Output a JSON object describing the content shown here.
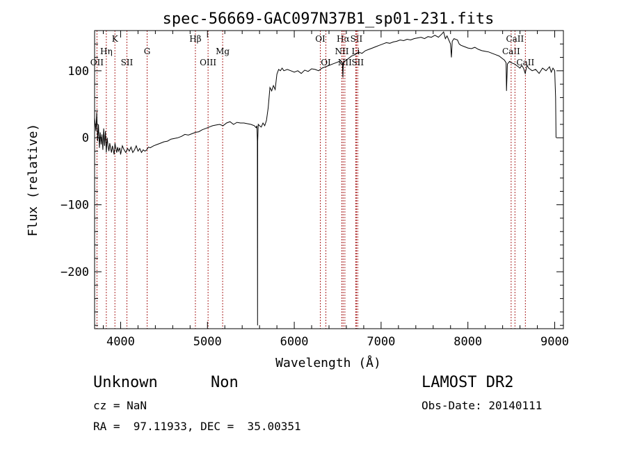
{
  "chart_data": {
    "type": "line",
    "title": "spec-56669-GAC097N37B1_sp01-231.fits",
    "xlabel": "Wavelength (Å)",
    "ylabel": "Flux (relative)",
    "xlim": [
      3700,
      9100
    ],
    "ylim": [
      -285,
      160
    ],
    "grid": false,
    "xticks": [
      4000,
      5000,
      6000,
      7000,
      8000,
      9000
    ],
    "yticks": [
      100,
      0,
      -100,
      -200
    ],
    "ytick_labels": [
      "100",
      "0",
      "−100",
      "−200"
    ],
    "series": [
      {
        "points": [
          [
            3700,
            30
          ],
          [
            3715,
            10
          ],
          [
            3725,
            38
          ],
          [
            3735,
            -5
          ],
          [
            3745,
            20
          ],
          [
            3755,
            -15
          ],
          [
            3765,
            8
          ],
          [
            3775,
            -10
          ],
          [
            3785,
            5
          ],
          [
            3795,
            -18
          ],
          [
            3805,
            14
          ],
          [
            3815,
            -12
          ],
          [
            3825,
            10
          ],
          [
            3835,
            -22
          ],
          [
            3845,
            0
          ],
          [
            3855,
            -12
          ],
          [
            3865,
            -20
          ],
          [
            3875,
            -8
          ],
          [
            3885,
            -16
          ],
          [
            3895,
            -22
          ],
          [
            3905,
            -12
          ],
          [
            3915,
            -18
          ],
          [
            3925,
            -25
          ],
          [
            3935,
            -8
          ],
          [
            3945,
            -16
          ],
          [
            3955,
            -22
          ],
          [
            3965,
            -14
          ],
          [
            3975,
            -20
          ],
          [
            3990,
            -15
          ],
          [
            4000,
            -25
          ],
          [
            4020,
            -12
          ],
          [
            4040,
            -18
          ],
          [
            4060,
            -22
          ],
          [
            4080,
            -16
          ],
          [
            4100,
            -20
          ],
          [
            4120,
            -14
          ],
          [
            4140,
            -22
          ],
          [
            4160,
            -18
          ],
          [
            4180,
            -12
          ],
          [
            4200,
            -20
          ],
          [
            4220,
            -16
          ],
          [
            4240,
            -22
          ],
          [
            4260,
            -18
          ],
          [
            4280,
            -20
          ],
          [
            4300,
            -18
          ],
          [
            4320,
            -14
          ],
          [
            4340,
            -15
          ],
          [
            4380,
            -12
          ],
          [
            4420,
            -10
          ],
          [
            4460,
            -8
          ],
          [
            4500,
            -6
          ],
          [
            4540,
            -5
          ],
          [
            4580,
            -2
          ],
          [
            4620,
            -1
          ],
          [
            4660,
            0
          ],
          [
            4700,
            2
          ],
          [
            4740,
            5
          ],
          [
            4780,
            4
          ],
          [
            4820,
            6
          ],
          [
            4860,
            8
          ],
          [
            4900,
            9
          ],
          [
            4940,
            12
          ],
          [
            4980,
            14
          ],
          [
            5020,
            16
          ],
          [
            5060,
            18
          ],
          [
            5100,
            19
          ],
          [
            5140,
            20
          ],
          [
            5180,
            18
          ],
          [
            5220,
            22
          ],
          [
            5260,
            24
          ],
          [
            5300,
            20
          ],
          [
            5340,
            23
          ],
          [
            5380,
            22
          ],
          [
            5420,
            22
          ],
          [
            5460,
            21
          ],
          [
            5500,
            20
          ],
          [
            5540,
            18
          ],
          [
            5560,
            15
          ],
          [
            5570,
            18
          ],
          [
            5575,
            -5
          ],
          [
            5577,
            -280
          ],
          [
            5579,
            -5
          ],
          [
            5585,
            20
          ],
          [
            5600,
            18
          ],
          [
            5620,
            16
          ],
          [
            5640,
            22
          ],
          [
            5660,
            18
          ],
          [
            5680,
            26
          ],
          [
            5700,
            45
          ],
          [
            5720,
            75
          ],
          [
            5740,
            70
          ],
          [
            5760,
            78
          ],
          [
            5780,
            72
          ],
          [
            5800,
            95
          ],
          [
            5820,
            102
          ],
          [
            5840,
            100
          ],
          [
            5860,
            104
          ],
          [
            5880,
            100
          ],
          [
            5920,
            102
          ],
          [
            5960,
            100
          ],
          [
            6000,
            98
          ],
          [
            6040,
            100
          ],
          [
            6080,
            96
          ],
          [
            6120,
            101
          ],
          [
            6160,
            99
          ],
          [
            6200,
            103
          ],
          [
            6240,
            102
          ],
          [
            6280,
            100
          ],
          [
            6320,
            104
          ],
          [
            6360,
            106
          ],
          [
            6400,
            108
          ],
          [
            6440,
            110
          ],
          [
            6480,
            112
          ],
          [
            6520,
            114
          ],
          [
            6540,
            110
          ],
          [
            6555,
            110
          ],
          [
            6560,
            90
          ],
          [
            6565,
            112
          ],
          [
            6580,
            114
          ],
          [
            6620,
            118
          ],
          [
            6660,
            122
          ],
          [
            6700,
            124
          ],
          [
            6740,
            128
          ],
          [
            6780,
            126
          ],
          [
            6820,
            130
          ],
          [
            6860,
            132
          ],
          [
            6900,
            134
          ],
          [
            6940,
            136
          ],
          [
            6980,
            138
          ],
          [
            7020,
            140
          ],
          [
            7060,
            142
          ],
          [
            7100,
            141
          ],
          [
            7140,
            143
          ],
          [
            7180,
            144
          ],
          [
            7220,
            146
          ],
          [
            7260,
            145
          ],
          [
            7300,
            147
          ],
          [
            7340,
            146
          ],
          [
            7380,
            148
          ],
          [
            7420,
            149
          ],
          [
            7460,
            150
          ],
          [
            7500,
            148
          ],
          [
            7540,
            151
          ],
          [
            7580,
            150
          ],
          [
            7620,
            153
          ],
          [
            7660,
            150
          ],
          [
            7700,
            155
          ],
          [
            7720,
            158
          ],
          [
            7740,
            148
          ],
          [
            7760,
            152
          ],
          [
            7780,
            146
          ],
          [
            7800,
            140
          ],
          [
            7810,
            120
          ],
          [
            7820,
            144
          ],
          [
            7840,
            148
          ],
          [
            7880,
            146
          ],
          [
            7900,
            140
          ],
          [
            7920,
            138
          ],
          [
            7960,
            136
          ],
          [
            8000,
            134
          ],
          [
            8040,
            133
          ],
          [
            8080,
            135
          ],
          [
            8120,
            132
          ],
          [
            8160,
            130
          ],
          [
            8200,
            129
          ],
          [
            8240,
            128
          ],
          [
            8280,
            126
          ],
          [
            8320,
            124
          ],
          [
            8360,
            122
          ],
          [
            8400,
            118
          ],
          [
            8420,
            116
          ],
          [
            8440,
            112
          ],
          [
            8445,
            70
          ],
          [
            8455,
            110
          ],
          [
            8480,
            114
          ],
          [
            8500,
            112
          ],
          [
            8540,
            110
          ],
          [
            8560,
            108
          ],
          [
            8600,
            104
          ],
          [
            8620,
            108
          ],
          [
            8640,
            104
          ],
          [
            8660,
            96
          ],
          [
            8680,
            108
          ],
          [
            8700,
            104
          ],
          [
            8740,
            100
          ],
          [
            8780,
            102
          ],
          [
            8820,
            96
          ],
          [
            8860,
            104
          ],
          [
            8900,
            100
          ],
          [
            8940,
            106
          ],
          [
            8960,
            98
          ],
          [
            8980,
            104
          ],
          [
            9000,
            100
          ],
          [
            9010,
            60
          ],
          [
            9015,
            0
          ]
        ]
      }
    ],
    "lines": [
      {
        "label": "OII",
        "x": 3727,
        "row": 3
      },
      {
        "label": "Hη",
        "x": 3835,
        "row": 2
      },
      {
        "label": "K",
        "x": 3934,
        "row": 1
      },
      {
        "label": "SII",
        "x": 4072,
        "row": 3
      },
      {
        "label": "G",
        "x": 4305,
        "row": 2
      },
      {
        "label": "Hβ",
        "x": 4861,
        "row": 1
      },
      {
        "label": "OIII",
        "x": 5007,
        "row": 3
      },
      {
        "label": "Mg",
        "x": 5175,
        "row": 2
      },
      {
        "label": "OI",
        "x": 6300,
        "row": 1
      },
      {
        "label": "OI",
        "x": 6364,
        "row": 3
      },
      {
        "label": "Hα",
        "x": 6563,
        "row": 1
      },
      {
        "label": "NII",
        "x": 6548,
        "row": 2
      },
      {
        "label": "NII",
        "x": 6583,
        "row": 3
      },
      {
        "label": "SII",
        "x": 6716,
        "row": 1
      },
      {
        "label": "Li",
        "x": 6708,
        "row": 2
      },
      {
        "label": "SII",
        "x": 6731,
        "row": 3
      },
      {
        "label": "CaII",
        "x": 8498,
        "row": 2
      },
      {
        "label": "CaII",
        "x": 8542,
        "row": 1
      },
      {
        "label": "CaII",
        "x": 8662,
        "row": 3
      }
    ]
  },
  "info": {
    "class": "Unknown",
    "subclass": "Non",
    "survey": "LAMOST DR2",
    "cz": "cz = NaN",
    "obs_date": "Obs-Date: 20140111",
    "coords": "RA =  97.11933, DEC =  35.00351"
  }
}
